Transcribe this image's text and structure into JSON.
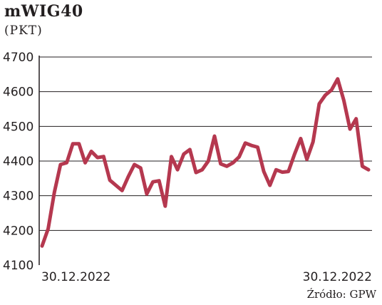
{
  "header": {
    "title": "mWIG40",
    "subtitle": "(PKT)"
  },
  "footer": {
    "source": "Źródło: GPW"
  },
  "chart_data": {
    "type": "line",
    "title": "mWIG40",
    "ylabel": "(PKT)",
    "xlabel": "",
    "ylim": [
      4100,
      4700
    ],
    "yticks": [
      4100,
      4200,
      4300,
      4400,
      4500,
      4600,
      4700
    ],
    "x_tick_labels": [
      "30.12.2022",
      "30.12.2022"
    ],
    "grid": "horizontal",
    "color": "#b5384f",
    "series": [
      {
        "values": [
          4155,
          4205,
          4310,
          4390,
          4395,
          4450,
          4450,
          4395,
          4428,
          4410,
          4413,
          4345,
          4330,
          4315,
          4355,
          4390,
          4380,
          4305,
          4340,
          4343,
          4270,
          4413,
          4375,
          4420,
          4433,
          4367,
          4375,
          4400,
          4472,
          4392,
          4385,
          4395,
          4412,
          4452,
          4445,
          4440,
          4370,
          4330,
          4375,
          4368,
          4370,
          4420,
          4465,
          4405,
          4455,
          4565,
          4590,
          4605,
          4637,
          4575,
          4492,
          4522,
          4385,
          4375
        ]
      }
    ]
  }
}
